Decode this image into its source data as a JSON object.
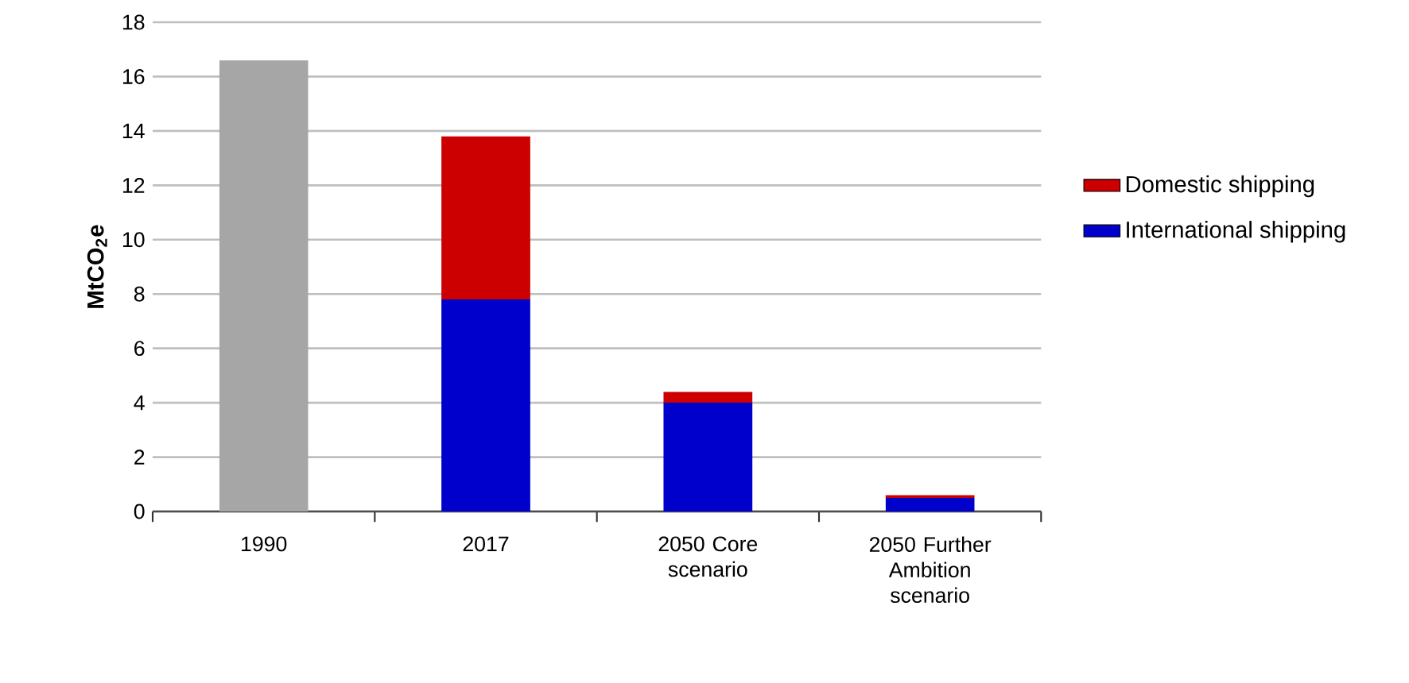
{
  "chart_data": {
    "type": "bar",
    "stacked": true,
    "ylabel": "MtCO$_{2}$e",
    "categories": [
      "1990",
      "2017",
      "2050 Core scenario",
      "2050 Further Ambition scenario"
    ],
    "series": [
      {
        "color": "#a6a6a6",
        "values": [
          16.6,
          null,
          null,
          null
        ]
      },
      {
        "name": "International shipping",
        "color": "#0000cc",
        "values": [
          null,
          7.8,
          4.0,
          0.5
        ]
      },
      {
        "name": "Domestic shipping",
        "color": "#cc0000",
        "values": [
          null,
          6.0,
          0.4,
          0.1
        ]
      }
    ],
    "ylim": [
      0,
      18
    ],
    "yticks": [
      0,
      2,
      4,
      6,
      8,
      10,
      12,
      14,
      16,
      18
    ],
    "grid": "y",
    "legend": "right"
  }
}
